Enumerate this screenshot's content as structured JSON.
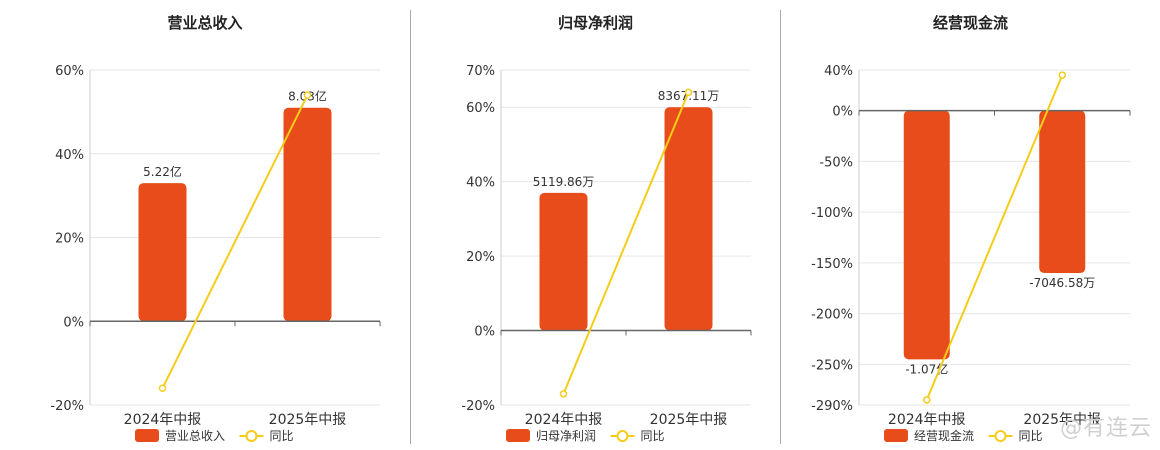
{
  "watermark": "@有连云",
  "chart_data": [
    {
      "type": "bar",
      "title": "营业总收入",
      "categories": [
        "2024年中报",
        "2025年中报"
      ],
      "series": [
        {
          "name": "营业总收入",
          "kind": "bar",
          "values": [
            33,
            51
          ],
          "labels": [
            "5.22亿",
            "8.03亿"
          ],
          "color": "#e84c1a"
        },
        {
          "name": "同比",
          "kind": "line",
          "values": [
            -16,
            54
          ],
          "color": "#f5cc1a"
        }
      ],
      "y_ticks": [
        -20,
        0,
        20,
        40,
        60
      ],
      "y_tick_labels": [
        "-20%",
        "0%",
        "20%",
        "40%",
        "60%"
      ],
      "ylim": [
        -20,
        60
      ],
      "grid": true,
      "legend_placement": "bottom"
    },
    {
      "type": "bar",
      "title": "归母净利润",
      "categories": [
        "2024年中报",
        "2025年中报"
      ],
      "series": [
        {
          "name": "归母净利润",
          "kind": "bar",
          "values": [
            37,
            60
          ],
          "labels": [
            "5119.86万",
            "8367.11万"
          ],
          "color": "#e84c1a"
        },
        {
          "name": "同比",
          "kind": "line",
          "values": [
            -17,
            64
          ],
          "color": "#f5cc1a"
        }
      ],
      "y_ticks": [
        -20,
        0,
        20,
        40,
        60,
        70
      ],
      "y_tick_labels": [
        "-20%",
        "0%",
        "20%",
        "40%",
        "60%",
        "70%"
      ],
      "ylim": [
        -20,
        70
      ],
      "grid": true,
      "legend_placement": "bottom"
    },
    {
      "type": "bar",
      "title": "经营现金流",
      "categories": [
        "2024年中报",
        "2025年中报"
      ],
      "series": [
        {
          "name": "经营现金流",
          "kind": "bar",
          "values": [
            -245,
            -160
          ],
          "labels": [
            "-1.07亿",
            "-7046.58万"
          ],
          "color": "#e84c1a"
        },
        {
          "name": "同比",
          "kind": "line",
          "values": [
            -285,
            35
          ],
          "color": "#f5cc1a"
        }
      ],
      "y_ticks": [
        -290,
        -250,
        -200,
        -150,
        -100,
        -50,
        0,
        40
      ],
      "y_tick_labels": [
        "-290%",
        "-250%",
        "-200%",
        "-150%",
        "-100%",
        "-50%",
        "0%",
        "40%"
      ],
      "ylim": [
        -290,
        40
      ],
      "grid": true,
      "legend_placement": "bottom"
    }
  ]
}
